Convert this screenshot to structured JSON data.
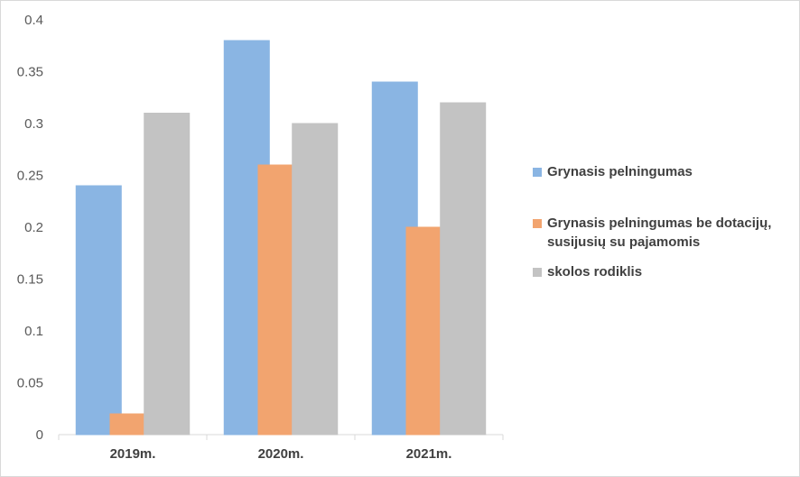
{
  "chart_data": {
    "type": "bar",
    "categories": [
      "2019m.",
      "2020m.",
      "2021m."
    ],
    "series": [
      {
        "name": "Grynasis pelningumas",
        "color": "#5b9bd5",
        "values": [
          0.24,
          0.38,
          0.34
        ]
      },
      {
        "name": "Grynasis pelningumas be dotacijų, susijusių su pajamomis",
        "color": "#ed7d31",
        "values": [
          0.02,
          0.26,
          0.2
        ]
      },
      {
        "name": "skolos rodiklis",
        "color": "#a5a5a5",
        "values": [
          0.31,
          0.3,
          0.32
        ]
      }
    ],
    "yticks": [
      "0",
      "0.05",
      "0.1",
      "0.15",
      "0.2",
      "0.25",
      "0.3",
      "0.35",
      "0.4"
    ],
    "ylim": [
      0,
      0.4
    ],
    "grid": false,
    "legend_position": "right"
  }
}
